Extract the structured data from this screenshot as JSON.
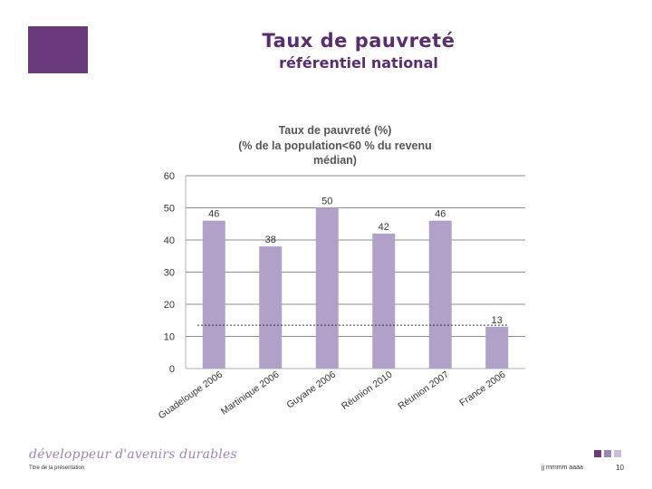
{
  "header": {
    "title": "Taux de pauvreté",
    "subtitle": "référentiel national"
  },
  "chart_data": {
    "type": "bar",
    "title_lines": [
      "Taux de pauvreté (%)",
      "(% de la population<60  % du revenu",
      "médian)"
    ],
    "categories": [
      "Guadeloupe 2006",
      "Martinique 2006",
      "Guyane 2006",
      "Réunion 2010",
      "Réunion 2007",
      "France 2006"
    ],
    "values": [
      46,
      38,
      50,
      42,
      46,
      13
    ],
    "value_labels": [
      "46",
      "38",
      "50",
      "42",
      "46",
      "13"
    ],
    "y_ticks": [
      0,
      10,
      20,
      30,
      40,
      50,
      60
    ],
    "ylim": [
      0,
      60
    ],
    "reference_line": 13.5,
    "bar_color": "#b1a0c7",
    "grid_color": "#8c8c8c",
    "reference_color": "#333333"
  },
  "footer": {
    "brand": "développeur d'avenirs durables",
    "presentation_title": "Titre de la présentation",
    "date": "jj mmmm aaaa",
    "page_number": "10",
    "squares": [
      "#6a3a7c",
      "#9c86b4",
      "#c9bdd8"
    ]
  }
}
